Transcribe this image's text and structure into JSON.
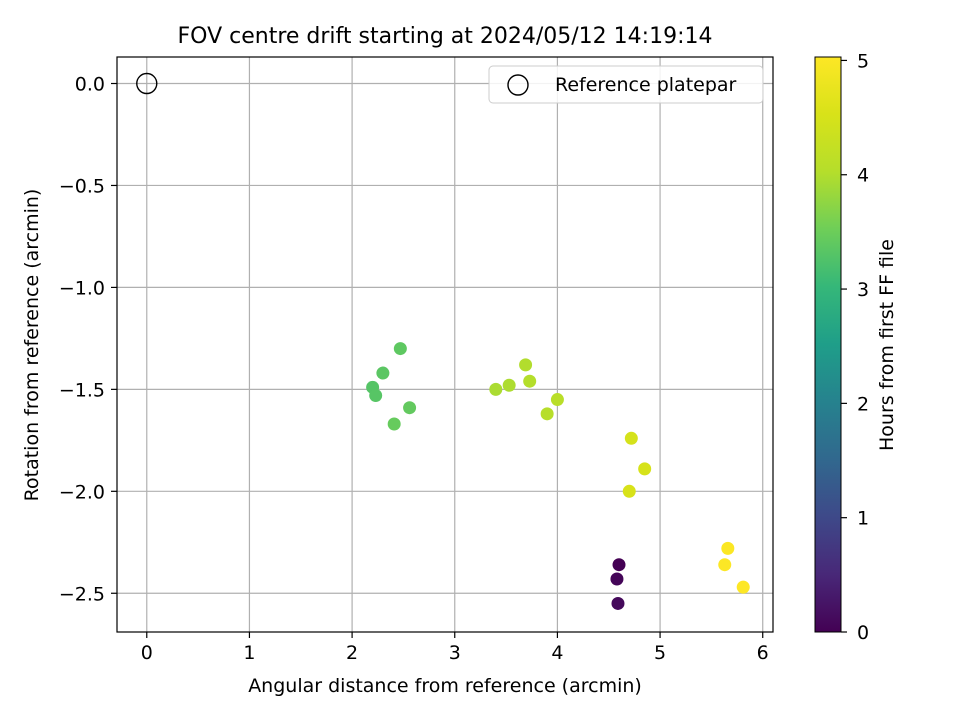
{
  "chart_data": {
    "type": "scatter",
    "title": "FOV centre drift starting at 2024/05/12 14:19:14",
    "xlabel": "Angular distance from reference (arcmin)",
    "ylabel": "Rotation from reference (arcmin)",
    "xlim": [
      -0.29,
      6.1
    ],
    "ylim": [
      -2.69,
      0.13
    ],
    "x_ticks": [
      0,
      1,
      2,
      3,
      4,
      5,
      6
    ],
    "y_ticks": [
      0.0,
      -0.5,
      -1.0,
      -1.5,
      -2.0,
      -2.5
    ],
    "x_tick_labels": [
      "0",
      "1",
      "2",
      "3",
      "4",
      "5",
      "6"
    ],
    "y_tick_labels": [
      "0.0",
      "−0.5",
      "−1.0",
      "−1.5",
      "−2.0",
      "−2.5"
    ],
    "grid": true,
    "legend": {
      "position": "top-right",
      "entries": [
        "Reference platepar"
      ]
    },
    "reference_point": {
      "label": "Reference platepar",
      "x": 0.0,
      "y": 0.0,
      "marker": "open-circle"
    },
    "colorbar": {
      "label": "Hours from first FF file",
      "colormap": "viridis",
      "range": [
        0,
        5.03
      ],
      "ticks": [
        0,
        1,
        2,
        3,
        4,
        5
      ],
      "tick_labels": [
        "0",
        "1",
        "2",
        "3",
        "4",
        "5"
      ]
    },
    "points": [
      {
        "x": 4.6,
        "y": -2.36,
        "hours": 0.0
      },
      {
        "x": 4.58,
        "y": -2.43,
        "hours": 0.05
      },
      {
        "x": 4.59,
        "y": -2.55,
        "hours": 0.1
      },
      {
        "x": 2.2,
        "y": -1.49,
        "hours": 3.3
      },
      {
        "x": 2.23,
        "y": -1.53,
        "hours": 3.32
      },
      {
        "x": 2.3,
        "y": -1.42,
        "hours": 3.35
      },
      {
        "x": 2.47,
        "y": -1.3,
        "hours": 3.38
      },
      {
        "x": 2.56,
        "y": -1.59,
        "hours": 3.42
      },
      {
        "x": 2.41,
        "y": -1.67,
        "hours": 3.45
      },
      {
        "x": 3.4,
        "y": -1.5,
        "hours": 3.95
      },
      {
        "x": 3.53,
        "y": -1.48,
        "hours": 3.97
      },
      {
        "x": 3.69,
        "y": -1.38,
        "hours": 4.0
      },
      {
        "x": 3.73,
        "y": -1.46,
        "hours": 4.02
      },
      {
        "x": 3.9,
        "y": -1.62,
        "hours": 4.05
      },
      {
        "x": 4.0,
        "y": -1.55,
        "hours": 4.08
      },
      {
        "x": 4.72,
        "y": -1.74,
        "hours": 4.48
      },
      {
        "x": 4.85,
        "y": -1.89,
        "hours": 4.5
      },
      {
        "x": 4.7,
        "y": -2.0,
        "hours": 4.52
      },
      {
        "x": 5.66,
        "y": -2.28,
        "hours": 5.0
      },
      {
        "x": 5.63,
        "y": -2.36,
        "hours": 5.01
      },
      {
        "x": 5.81,
        "y": -2.47,
        "hours": 5.03
      }
    ],
    "colors": {
      "grid": "#b0b0b0",
      "axes": "#000000",
      "reference_marker": "#000000",
      "legend_border": "#cccccc"
    }
  }
}
